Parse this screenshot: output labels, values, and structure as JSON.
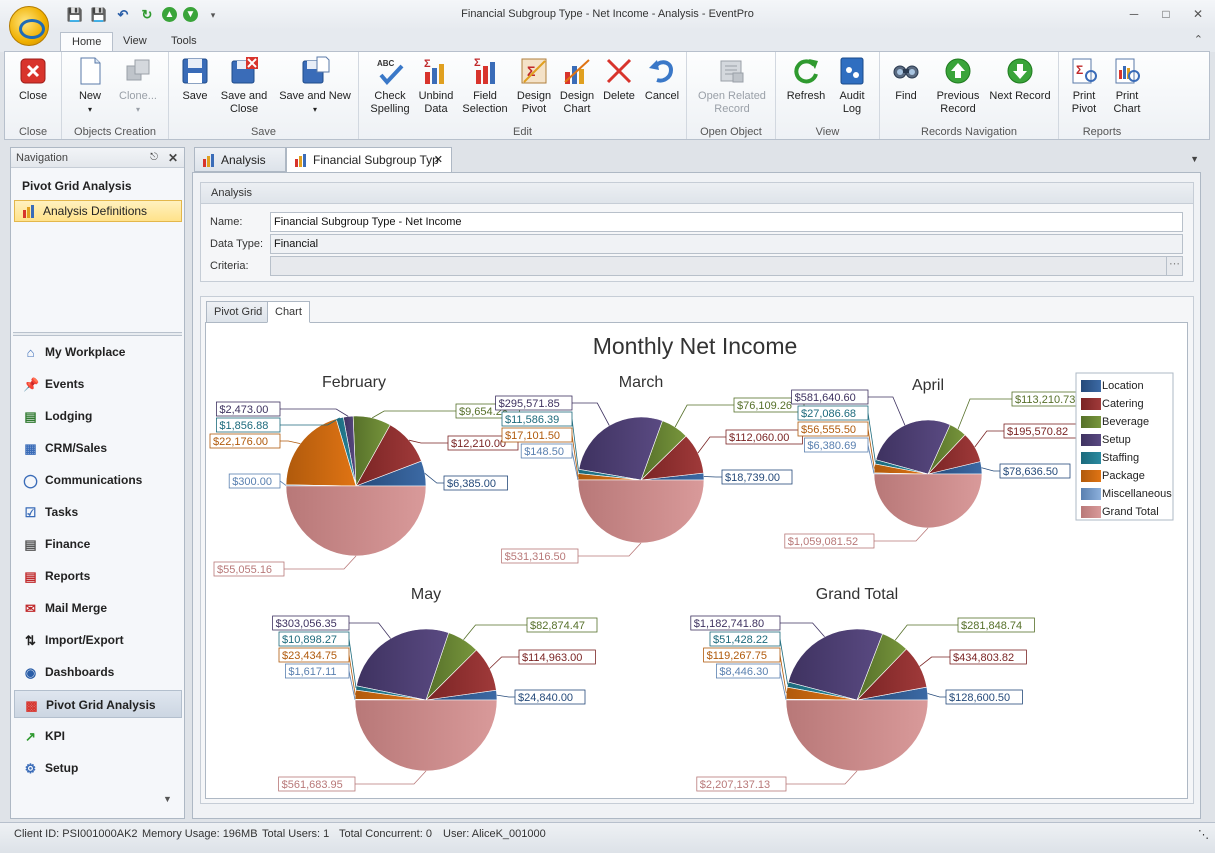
{
  "window": {
    "title": "Financial Subgroup Type - Net Income - Analysis - EventPro"
  },
  "ribbon": {
    "tabs": [
      "Home",
      "View",
      "Tools"
    ],
    "groups": [
      {
        "label": "Close",
        "buttons": [
          {
            "label1": "Close",
            "label2": "",
            "icon": "close-icon",
            "enabled": true
          }
        ]
      },
      {
        "label": "Objects Creation",
        "buttons": [
          {
            "label1": "New",
            "label2": "▾",
            "icon": "new-document-icon",
            "enabled": true
          },
          {
            "label1": "Clone...",
            "label2": "▾",
            "icon": "clone-icon",
            "enabled": false
          }
        ]
      },
      {
        "label": "Save",
        "buttons": [
          {
            "label1": "Save",
            "label2": "",
            "icon": "save-icon",
            "enabled": true
          },
          {
            "label1": "Save and",
            "label2": "Close",
            "icon": "save-close-icon",
            "enabled": true
          },
          {
            "label1": "Save and New",
            "label2": "▾",
            "icon": "save-new-icon",
            "enabled": true
          }
        ]
      },
      {
        "label": "Edit",
        "buttons": [
          {
            "label1": "Check",
            "label2": "Spelling",
            "icon": "spelling-icon",
            "enabled": true
          },
          {
            "label1": "Unbind",
            "label2": "Data",
            "icon": "unbind-data-icon",
            "enabled": true
          },
          {
            "label1": "Field",
            "label2": "Selection",
            "icon": "field-selection-icon",
            "enabled": true
          },
          {
            "label1": "Design",
            "label2": "Pivot",
            "icon": "design-pivot-icon",
            "enabled": true
          },
          {
            "label1": "Design",
            "label2": "Chart",
            "icon": "design-chart-icon",
            "enabled": true
          },
          {
            "label1": "Delete",
            "label2": "",
            "icon": "delete-icon",
            "enabled": true
          },
          {
            "label1": "Cancel",
            "label2": "",
            "icon": "cancel-icon",
            "enabled": true
          }
        ]
      },
      {
        "label": "Open Object",
        "buttons": [
          {
            "label1": "Open Related",
            "label2": "Record",
            "icon": "open-related-icon",
            "enabled": false
          }
        ]
      },
      {
        "label": "View",
        "buttons": [
          {
            "label1": "Refresh",
            "label2": "",
            "icon": "refresh-icon",
            "enabled": true
          },
          {
            "label1": "Audit",
            "label2": "Log",
            "icon": "audit-log-icon",
            "enabled": true
          }
        ]
      },
      {
        "label": "Records Navigation",
        "buttons": [
          {
            "label1": "Find",
            "label2": "",
            "icon": "find-binoculars-icon",
            "enabled": true
          },
          {
            "label1": "Previous",
            "label2": "Record",
            "icon": "previous-record-icon",
            "enabled": true
          },
          {
            "label1": "Next Record",
            "label2": "",
            "icon": "next-record-icon",
            "enabled": true
          }
        ]
      },
      {
        "label": "Reports",
        "buttons": [
          {
            "label1": "Print",
            "label2": "Pivot",
            "icon": "print-pivot-icon",
            "enabled": true
          },
          {
            "label1": "Print",
            "label2": "Chart",
            "icon": "print-chart-icon",
            "enabled": true
          }
        ]
      }
    ]
  },
  "navigation": {
    "header": "Navigation",
    "section_title": "Pivot Grid Analysis",
    "active_definition": "Analysis Definitions",
    "items": [
      {
        "label": "My Workplace",
        "icon": "workplace-icon",
        "active": false
      },
      {
        "label": "Events",
        "icon": "pushpin-icon",
        "active": false
      },
      {
        "label": "Lodging",
        "icon": "lodging-icon",
        "active": false
      },
      {
        "label": "CRM/Sales",
        "icon": "crm-icon",
        "active": false
      },
      {
        "label": "Communications",
        "icon": "speech-bubble-icon",
        "active": false
      },
      {
        "label": "Tasks",
        "icon": "tasks-icon",
        "active": false
      },
      {
        "label": "Finance",
        "icon": "finance-icon",
        "active": false
      },
      {
        "label": "Reports",
        "icon": "reports-icon",
        "active": false
      },
      {
        "label": "Mail Merge",
        "icon": "mail-merge-icon",
        "active": false
      },
      {
        "label": "Import/Export",
        "icon": "import-export-icon",
        "active": false
      },
      {
        "label": "Dashboards",
        "icon": "dashboard-icon",
        "active": false
      },
      {
        "label": "Pivot Grid Analysis",
        "icon": "pivot-grid-icon",
        "active": true
      },
      {
        "label": "KPI",
        "icon": "kpi-icon",
        "active": false
      },
      {
        "label": "Setup",
        "icon": "gear-icon",
        "active": false
      }
    ]
  },
  "doc_tabs": [
    {
      "label": "Analysis",
      "active": false
    },
    {
      "label": "Financial Subgroup Typ",
      "active": true
    }
  ],
  "analysis": {
    "header": "Analysis",
    "name_label": "Name:",
    "name_value": "Financial Subgroup Type - Net Income",
    "datatype_label": "Data Type:",
    "datatype_value": "Financial",
    "criteria_label": "Criteria:",
    "criteria_value": ""
  },
  "inner_tabs": [
    {
      "label": "Pivot Grid",
      "active": false
    },
    {
      "label": "Chart",
      "active": true
    }
  ],
  "colors": {
    "Location": "#3c6aa5",
    "Catering": "#a03a3a",
    "Beverage": "#78963c",
    "Setup": "#5a4a82",
    "Staffing": "#2a8aa0",
    "Package": "#e07414",
    "Miscellaneous": "#8cb0dc",
    "Grand Total": "#d99a9a"
  },
  "chart_data": {
    "type": "pie",
    "title": "Monthly Net Income",
    "legend_position": "top-right",
    "categories": [
      "Location",
      "Catering",
      "Beverage",
      "Setup",
      "Staffing",
      "Package",
      "Miscellaneous",
      "Grand Total"
    ],
    "pies": [
      {
        "name": "February",
        "values": [
          6385.0,
          12210.0,
          9654.28,
          2473.0,
          1856.88,
          22176.0,
          300.0,
          55055.16
        ],
        "labels": [
          "$6,385.00",
          "$12,210.00",
          "$9,654.28",
          "$2,473.00",
          "$1,856.88",
          "$22,176.00",
          "$300.00",
          "$55,055.16"
        ]
      },
      {
        "name": "March",
        "values": [
          18739.0,
          112060.0,
          76109.26,
          295571.85,
          11586.39,
          17101.5,
          148.5,
          531316.5
        ],
        "labels": [
          "$18,739.00",
          "$112,060.00",
          "$76,109.26",
          "$295,571.85",
          "$11,586.39",
          "$17,101.50",
          "$148.50",
          "$531,316.50"
        ]
      },
      {
        "name": "April",
        "values": [
          78636.5,
          195570.82,
          113210.73,
          581640.6,
          27086.68,
          56555.5,
          6380.69,
          1059081.52
        ],
        "labels": [
          "$78,636.50",
          "$195,570.82",
          "$113,210.73",
          "$581,640.60",
          "$27,086.68",
          "$56,555.50",
          "$6,380.69",
          "$1,059,081.52"
        ]
      },
      {
        "name": "May",
        "values": [
          24840.0,
          114963.0,
          82874.47,
          303056.35,
          10898.27,
          23434.75,
          1617.11,
          561683.95
        ],
        "labels": [
          "$24,840.00",
          "$114,963.00",
          "$82,874.47",
          "$303,056.35",
          "$10,898.27",
          "$23,434.75",
          "$1,617.11",
          "$561,683.95"
        ]
      },
      {
        "name": "Grand Total",
        "values": [
          128600.5,
          434803.82,
          281848.74,
          1182741.8,
          51428.22,
          119267.75,
          8446.3,
          2207137.13
        ],
        "labels": [
          "$128,600.50",
          "$434,803.82",
          "$281,848.74",
          "$1,182,741.80",
          "$51,428.22",
          "$119,267.75",
          "$8,446.30",
          "$2,207,137.13"
        ]
      }
    ]
  },
  "status": {
    "client_id": "Client ID: PSI001000AK2",
    "memory": "Memory Usage: 196MB",
    "total_users": "Total Users: 1",
    "total_concurrent": "Total Concurrent: 0",
    "user": "User: AliceK_001000"
  }
}
